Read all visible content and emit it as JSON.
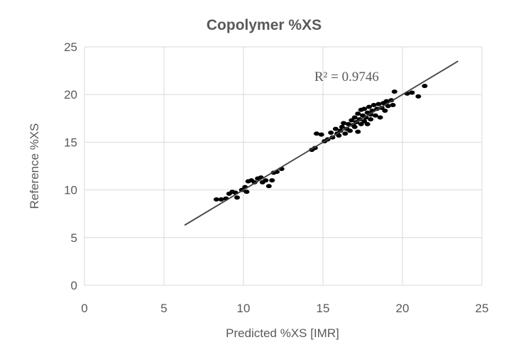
{
  "chart_data": {
    "type": "scatter",
    "title": "Copolymer %XS",
    "xlabel": "Predicted %XS [IMR]",
    "ylabel": "Reference %XS",
    "xlim": [
      0,
      25
    ],
    "ylim": [
      0,
      25
    ],
    "xticks": [
      "0",
      "5",
      "10",
      "15",
      "20",
      "25"
    ],
    "yticks": [
      "0",
      "5",
      "10",
      "15",
      "20",
      "25"
    ],
    "grid": true,
    "annotation": "R² = 0.9746",
    "trendline": {
      "x": [
        6.3,
        23.5
      ],
      "y": [
        6.3,
        23.5
      ]
    },
    "series": [
      {
        "marker_color": "#000000",
        "points": [
          [
            8.3,
            9.0
          ],
          [
            8.6,
            9.0
          ],
          [
            8.9,
            9.1
          ],
          [
            9.1,
            9.6
          ],
          [
            9.3,
            9.8
          ],
          [
            9.5,
            9.7
          ],
          [
            9.6,
            9.2
          ],
          [
            9.9,
            10.0
          ],
          [
            10.1,
            10.3
          ],
          [
            10.2,
            9.8
          ],
          [
            10.3,
            10.9
          ],
          [
            10.5,
            11.0
          ],
          [
            10.7,
            10.8
          ],
          [
            10.9,
            11.2
          ],
          [
            11.1,
            11.3
          ],
          [
            11.2,
            10.8
          ],
          [
            11.4,
            11.0
          ],
          [
            11.6,
            10.4
          ],
          [
            11.8,
            11.0
          ],
          [
            11.9,
            11.8
          ],
          [
            12.1,
            11.9
          ],
          [
            12.4,
            12.2
          ],
          [
            14.3,
            14.2
          ],
          [
            14.5,
            14.4
          ],
          [
            14.6,
            15.9
          ],
          [
            14.9,
            15.8
          ],
          [
            15.1,
            15.1
          ],
          [
            15.3,
            15.3
          ],
          [
            15.5,
            16.0
          ],
          [
            15.6,
            15.5
          ],
          [
            15.8,
            16.4
          ],
          [
            15.9,
            15.9
          ],
          [
            16.0,
            15.7
          ],
          [
            16.1,
            16.2
          ],
          [
            16.2,
            16.6
          ],
          [
            16.3,
            17.0
          ],
          [
            16.4,
            15.9
          ],
          [
            16.5,
            16.4
          ],
          [
            16.6,
            16.9
          ],
          [
            16.7,
            16.2
          ],
          [
            16.8,
            17.3
          ],
          [
            16.9,
            16.8
          ],
          [
            17.0,
            16.6
          ],
          [
            17.0,
            17.6
          ],
          [
            17.1,
            17.1
          ],
          [
            17.2,
            16.1
          ],
          [
            17.2,
            18.0
          ],
          [
            17.3,
            17.4
          ],
          [
            17.4,
            16.9
          ],
          [
            17.4,
            18.4
          ],
          [
            17.5,
            17.8
          ],
          [
            17.6,
            17.2
          ],
          [
            17.6,
            18.5
          ],
          [
            17.7,
            17.6
          ],
          [
            17.8,
            18.1
          ],
          [
            17.8,
            16.9
          ],
          [
            17.9,
            18.7
          ],
          [
            18.0,
            17.9
          ],
          [
            18.0,
            17.4
          ],
          [
            18.1,
            18.3
          ],
          [
            18.2,
            18.9
          ],
          [
            18.3,
            17.8
          ],
          [
            18.4,
            18.5
          ],
          [
            18.5,
            19.0
          ],
          [
            18.6,
            17.6
          ],
          [
            18.7,
            18.6
          ],
          [
            18.8,
            19.1
          ],
          [
            18.9,
            18.3
          ],
          [
            19.0,
            19.3
          ],
          [
            19.1,
            18.8
          ],
          [
            19.3,
            19.4
          ],
          [
            19.4,
            18.9
          ],
          [
            19.5,
            20.3
          ],
          [
            20.3,
            20.1
          ],
          [
            20.6,
            20.2
          ],
          [
            21.0,
            19.8
          ],
          [
            21.4,
            20.9
          ]
        ]
      }
    ]
  }
}
